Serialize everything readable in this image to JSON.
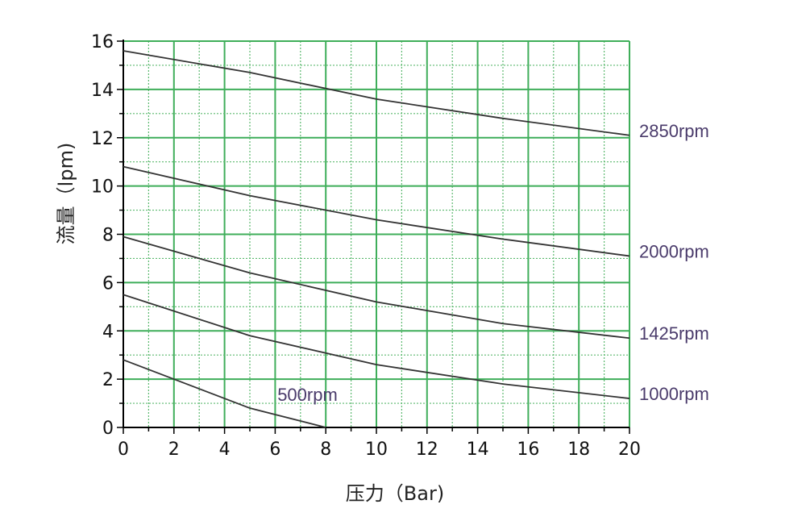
{
  "chart_data": {
    "type": "line",
    "title": "",
    "xlabel": "压力（Bar)",
    "ylabel": "流量（lpm)",
    "xlim": [
      0,
      20
    ],
    "ylim": [
      0,
      16
    ],
    "x_ticks": [
      "0",
      "2",
      "4",
      "6",
      "8",
      "10",
      "12",
      "14",
      "16",
      "18",
      "20"
    ],
    "y_ticks": [
      "0",
      "2",
      "4",
      "6",
      "8",
      "10",
      "12",
      "14",
      "16"
    ],
    "grid": true,
    "colors": {
      "grid_major": "#3fae5a",
      "grid_minor": "#5cb96f",
      "line": "#333333",
      "label": "#4a3b6b",
      "axis": "#000000"
    },
    "series": [
      {
        "name": "2850rpm",
        "x": [
          0,
          5,
          10,
          15,
          20
        ],
        "y": [
          15.6,
          14.7,
          13.6,
          12.8,
          12.1
        ]
      },
      {
        "name": "2000rpm",
        "x": [
          0,
          5,
          10,
          15,
          20
        ],
        "y": [
          10.8,
          9.6,
          8.6,
          7.8,
          7.1
        ]
      },
      {
        "name": "1425rpm",
        "x": [
          0,
          5,
          10,
          15,
          20
        ],
        "y": [
          7.9,
          6.4,
          5.2,
          4.3,
          3.7
        ]
      },
      {
        "name": "1000rpm",
        "x": [
          0,
          5,
          10,
          15,
          20
        ],
        "y": [
          5.5,
          3.8,
          2.6,
          1.8,
          1.2
        ]
      },
      {
        "name": "500rpm",
        "x": [
          0,
          5,
          8
        ],
        "y": [
          2.8,
          0.8,
          0.0
        ]
      }
    ]
  }
}
